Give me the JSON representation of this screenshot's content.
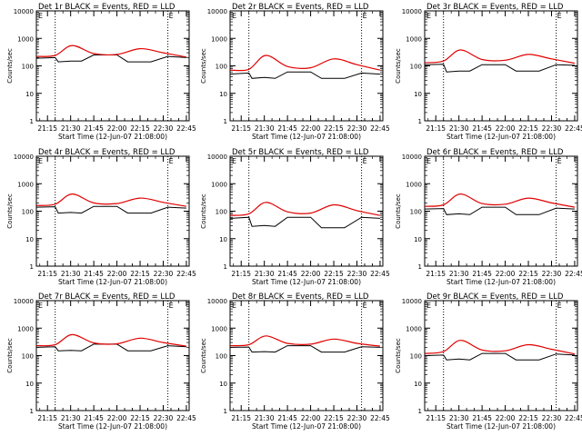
{
  "figure": {
    "xlabel": "Start Time (12-Jun-07 21:08:00)",
    "ylabel": "Counts/sec",
    "legend_marker": "E"
  },
  "colors": {
    "events": "#000000",
    "lld": "#e00000",
    "axes": "#000000"
  },
  "chart_data": [
    {
      "type": "line",
      "title": "Det 1r BLACK = Events, RED = LLD",
      "xlabel": "Start Time (12-Jun-07 21:08:00)",
      "ylabel": "Counts/sec",
      "x_ticks": [
        "21:15",
        "21:30",
        "21:45",
        "22:00",
        "22:15",
        "22:30",
        "22:45"
      ],
      "y_ticks": [
        "1",
        "10",
        "100",
        "1000",
        "10000"
      ],
      "yscale": "log",
      "ylim": [
        1,
        10000
      ],
      "xlim_minutes": [
        21.13,
        22.78
      ],
      "dotted_markers": [
        "21:20",
        "22:33"
      ],
      "series": [
        {
          "name": "Events",
          "x": [
            "21:08",
            "21:20",
            "21:22",
            "21:30",
            "21:37",
            "21:45",
            "22:00",
            "22:07",
            "22:22",
            "22:33",
            "22:45"
          ],
          "y": [
            190,
            200,
            140,
            150,
            150,
            250,
            250,
            140,
            140,
            220,
            200
          ]
        },
        {
          "name": "LLD",
          "x": [
            "21:08",
            "21:20",
            "21:31",
            "21:45",
            "22:00",
            "22:15",
            "22:30",
            "22:45"
          ],
          "y": [
            220,
            240,
            550,
            280,
            260,
            420,
            300,
            210
          ]
        }
      ]
    },
    {
      "type": "line",
      "title": "Det 2r BLACK = Events, RED = LLD",
      "xlabel": "Start Time (12-Jun-07 21:08:00)",
      "ylabel": "Counts/sec",
      "x_ticks": [
        "21:15",
        "21:30",
        "21:45",
        "22:00",
        "22:15",
        "22:30",
        "22:45"
      ],
      "y_ticks": [
        "1",
        "10",
        "100",
        "1000",
        "10000"
      ],
      "yscale": "log",
      "ylim": [
        1,
        10000
      ],
      "xlim_minutes": [
        21.13,
        22.78
      ],
      "dotted_markers": [
        "21:20",
        "22:33"
      ],
      "series": [
        {
          "name": "Events",
          "x": [
            "21:08",
            "21:20",
            "21:22",
            "21:30",
            "21:37",
            "21:45",
            "22:00",
            "22:07",
            "22:22",
            "22:33",
            "22:45"
          ],
          "y": [
            50,
            55,
            35,
            38,
            35,
            60,
            60,
            35,
            35,
            55,
            50
          ]
        },
        {
          "name": "LLD",
          "x": [
            "21:08",
            "21:20",
            "21:31",
            "21:45",
            "22:00",
            "22:15",
            "22:30",
            "22:45"
          ],
          "y": [
            70,
            75,
            240,
            95,
            85,
            180,
            110,
            70
          ]
        }
      ]
    },
    {
      "type": "line",
      "title": "Det 3r BLACK = Events, RED = LLD",
      "xlabel": "Start Time (12-Jun-07 21:08:00)",
      "ylabel": "Counts/sec",
      "x_ticks": [
        "21:15",
        "21:30",
        "21:45",
        "22:00",
        "22:15",
        "22:30",
        "22:45"
      ],
      "y_ticks": [
        "1",
        "10",
        "100",
        "1000",
        "10000"
      ],
      "yscale": "log",
      "ylim": [
        1,
        10000
      ],
      "xlim_minutes": [
        21.13,
        22.78
      ],
      "dotted_markers": [
        "21:20",
        "22:33"
      ],
      "series": [
        {
          "name": "Events",
          "x": [
            "21:08",
            "21:20",
            "21:22",
            "21:30",
            "21:37",
            "21:45",
            "22:00",
            "22:07",
            "22:22",
            "22:33",
            "22:45"
          ],
          "y": [
            110,
            115,
            60,
            65,
            65,
            110,
            110,
            65,
            65,
            110,
            105
          ]
        },
        {
          "name": "LLD",
          "x": [
            "21:08",
            "21:20",
            "21:31",
            "21:45",
            "22:00",
            "22:15",
            "22:30",
            "22:45"
          ],
          "y": [
            130,
            150,
            380,
            170,
            160,
            260,
            180,
            125
          ]
        }
      ]
    },
    {
      "type": "line",
      "title": "Det 4r BLACK = Events, RED = LLD",
      "xlabel": "Start Time (12-Jun-07 21:08:00)",
      "ylabel": "Counts/sec",
      "x_ticks": [
        "21:15",
        "21:30",
        "21:45",
        "22:00",
        "22:15",
        "22:30",
        "22:45"
      ],
      "y_ticks": [
        "1",
        "10",
        "100",
        "1000",
        "10000"
      ],
      "yscale": "log",
      "ylim": [
        1,
        10000
      ],
      "xlim_minutes": [
        21.13,
        22.78
      ],
      "dotted_markers": [
        "21:20",
        "22:33"
      ],
      "series": [
        {
          "name": "Events",
          "x": [
            "21:08",
            "21:20",
            "21:22",
            "21:30",
            "21:37",
            "21:45",
            "22:00",
            "22:07",
            "22:22",
            "22:33",
            "22:45"
          ],
          "y": [
            140,
            145,
            85,
            90,
            85,
            150,
            150,
            85,
            85,
            140,
            130
          ]
        },
        {
          "name": "LLD",
          "x": [
            "21:08",
            "21:20",
            "21:31",
            "21:45",
            "22:00",
            "22:15",
            "22:30",
            "22:45"
          ],
          "y": [
            160,
            180,
            420,
            200,
            190,
            300,
            210,
            150
          ]
        }
      ]
    },
    {
      "type": "line",
      "title": "Det 5r BLACK = Events, RED = LLD",
      "xlabel": "Start Time (12-Jun-07 21:08:00)",
      "ylabel": "Counts/sec",
      "x_ticks": [
        "21:15",
        "21:30",
        "21:45",
        "22:00",
        "22:15",
        "22:30",
        "22:45"
      ],
      "y_ticks": [
        "1",
        "10",
        "100",
        "1000",
        "10000"
      ],
      "yscale": "log",
      "ylim": [
        1,
        10000
      ],
      "xlim_minutes": [
        21.13,
        22.78
      ],
      "dotted_markers": [
        "21:20",
        "22:33"
      ],
      "series": [
        {
          "name": "Events",
          "x": [
            "21:08",
            "21:20",
            "21:22",
            "21:30",
            "21:37",
            "21:45",
            "22:00",
            "22:07",
            "22:22",
            "22:33",
            "22:45"
          ],
          "y": [
            55,
            60,
            28,
            30,
            28,
            60,
            60,
            25,
            25,
            60,
            55
          ]
        },
        {
          "name": "LLD",
          "x": [
            "21:08",
            "21:20",
            "21:31",
            "21:45",
            "22:00",
            "22:15",
            "22:30",
            "22:45"
          ],
          "y": [
            70,
            80,
            210,
            95,
            85,
            170,
            105,
            70
          ]
        }
      ]
    },
    {
      "type": "line",
      "title": "Det 6r BLACK = Events, RED = LLD",
      "xlabel": "Start Time (12-Jun-07 21:08:00)",
      "ylabel": "Counts/sec",
      "x_ticks": [
        "21:15",
        "21:30",
        "21:45",
        "22:00",
        "22:15",
        "22:30",
        "22:45"
      ],
      "y_ticks": [
        "1",
        "10",
        "100",
        "1000",
        "10000"
      ],
      "yscale": "log",
      "ylim": [
        1,
        10000
      ],
      "xlim_minutes": [
        21.13,
        22.78
      ],
      "dotted_markers": [
        "21:20",
        "22:33"
      ],
      "series": [
        {
          "name": "Events",
          "x": [
            "21:08",
            "21:20",
            "21:22",
            "21:30",
            "21:37",
            "21:45",
            "22:00",
            "22:07",
            "22:22",
            "22:33",
            "22:45"
          ],
          "y": [
            120,
            125,
            75,
            80,
            75,
            140,
            140,
            75,
            75,
            130,
            120
          ]
        },
        {
          "name": "LLD",
          "x": [
            "21:08",
            "21:20",
            "21:31",
            "21:45",
            "22:00",
            "22:15",
            "22:30",
            "22:45"
          ],
          "y": [
            150,
            170,
            420,
            190,
            180,
            300,
            200,
            140
          ]
        }
      ]
    },
    {
      "type": "line",
      "title": "Det 7r BLACK = Events, RED = LLD",
      "xlabel": "Start Time (12-Jun-07 21:08:00)",
      "ylabel": "Counts/sec",
      "x_ticks": [
        "21:15",
        "21:30",
        "21:45",
        "22:00",
        "22:15",
        "22:30",
        "22:45"
      ],
      "y_ticks": [
        "1",
        "10",
        "100",
        "1000",
        "10000"
      ],
      "yscale": "log",
      "ylim": [
        1,
        10000
      ],
      "xlim_minutes": [
        21.13,
        22.78
      ],
      "dotted_markers": [
        "21:20",
        "22:33"
      ],
      "series": [
        {
          "name": "Events",
          "x": [
            "21:08",
            "21:20",
            "21:22",
            "21:30",
            "21:37",
            "21:45",
            "22:00",
            "22:07",
            "22:22",
            "22:33",
            "22:45"
          ],
          "y": [
            200,
            210,
            150,
            155,
            150,
            260,
            260,
            150,
            150,
            230,
            210
          ]
        },
        {
          "name": "LLD",
          "x": [
            "21:08",
            "21:20",
            "21:31",
            "21:45",
            "22:00",
            "22:15",
            "22:30",
            "22:45"
          ],
          "y": [
            230,
            250,
            580,
            290,
            270,
            430,
            300,
            220
          ]
        }
      ]
    },
    {
      "type": "line",
      "title": "Det 8r BLACK = Events, RED = LLD",
      "xlabel": "Start Time (12-Jun-07 21:08:00)",
      "ylabel": "Counts/sec",
      "x_ticks": [
        "21:15",
        "21:30",
        "21:45",
        "22:00",
        "22:15",
        "22:30",
        "22:45"
      ],
      "y_ticks": [
        "1",
        "10",
        "100",
        "1000",
        "10000"
      ],
      "yscale": "log",
      "ylim": [
        1,
        10000
      ],
      "xlim_minutes": [
        21.13,
        22.78
      ],
      "dotted_markers": [
        "21:20",
        "22:33"
      ],
      "series": [
        {
          "name": "Events",
          "x": [
            "21:08",
            "21:20",
            "21:22",
            "21:30",
            "21:37",
            "21:45",
            "22:00",
            "22:07",
            "22:22",
            "22:33",
            "22:45"
          ],
          "y": [
            200,
            205,
            135,
            140,
            135,
            230,
            230,
            135,
            135,
            210,
            200
          ]
        },
        {
          "name": "LLD",
          "x": [
            "21:08",
            "21:20",
            "21:31",
            "21:45",
            "22:00",
            "22:15",
            "22:30",
            "22:45"
          ],
          "y": [
            230,
            250,
            520,
            280,
            260,
            400,
            280,
            220
          ]
        }
      ]
    },
    {
      "type": "line",
      "title": "Det 9r BLACK = Events, RED = LLD",
      "xlabel": "Start Time (12-Jun-07 21:08:00)",
      "ylabel": "Counts/sec",
      "x_ticks": [
        "21:15",
        "21:30",
        "21:45",
        "22:00",
        "22:15",
        "22:30",
        "22:45"
      ],
      "y_ticks": [
        "1",
        "10",
        "100",
        "1000",
        "10000"
      ],
      "yscale": "log",
      "ylim": [
        1,
        10000
      ],
      "xlim_minutes": [
        21.13,
        22.78
      ],
      "dotted_markers": [
        "21:20",
        "22:33"
      ],
      "series": [
        {
          "name": "Events",
          "x": [
            "21:08",
            "21:20",
            "21:22",
            "21:30",
            "21:37",
            "21:45",
            "22:00",
            "22:07",
            "22:22",
            "22:33",
            "22:45"
          ],
          "y": [
            100,
            105,
            70,
            75,
            70,
            120,
            120,
            70,
            70,
            115,
            105
          ]
        },
        {
          "name": "LLD",
          "x": [
            "21:08",
            "21:20",
            "21:31",
            "21:45",
            "22:00",
            "22:15",
            "22:30",
            "22:45"
          ],
          "y": [
            120,
            140,
            360,
            160,
            150,
            250,
            170,
            115
          ]
        }
      ]
    }
  ]
}
